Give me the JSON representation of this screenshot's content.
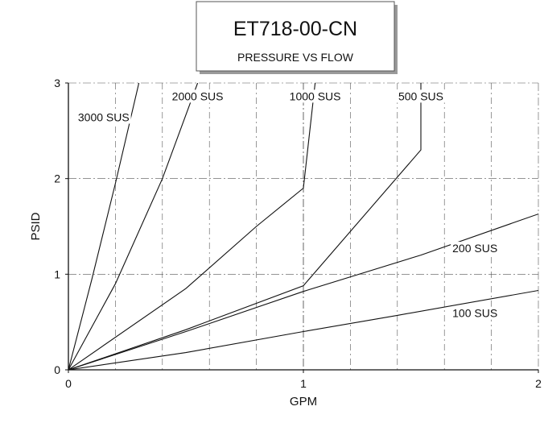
{
  "chart_data": {
    "type": "line",
    "title": "ET718-00-CN",
    "subtitle": "PRESSURE VS FLOW",
    "xlabel": "GPM",
    "ylabel": "PSID",
    "xlim": [
      0,
      2
    ],
    "ylim": [
      0,
      3
    ],
    "x_ticks": [
      0,
      1,
      2
    ],
    "y_ticks": [
      0,
      1,
      2,
      3
    ],
    "grid": true,
    "legend": "none (series labeled inline on curves)",
    "series": [
      {
        "name": "3000 SUS",
        "points": [
          [
            0,
            0
          ],
          [
            0.1,
            0.95
          ],
          [
            0.2,
            1.95
          ],
          [
            0.3,
            3.0
          ]
        ]
      },
      {
        "name": "2000 SUS",
        "points": [
          [
            0,
            0
          ],
          [
            0.2,
            0.9
          ],
          [
            0.4,
            2.0
          ],
          [
            0.55,
            3.0
          ]
        ]
      },
      {
        "name": "1000 SUS",
        "points": [
          [
            0,
            0
          ],
          [
            0.5,
            0.85
          ],
          [
            0.8,
            1.5
          ],
          [
            1.0,
            1.9
          ],
          [
            1.05,
            3.0
          ]
        ]
      },
      {
        "name": "500 SUS",
        "points": [
          [
            0,
            0
          ],
          [
            0.5,
            0.42
          ],
          [
            1.0,
            0.88
          ],
          [
            1.5,
            2.3
          ],
          [
            1.5,
            3.0
          ]
        ]
      },
      {
        "name": "200 SUS",
        "points": [
          [
            0,
            0
          ],
          [
            0.5,
            0.4
          ],
          [
            1.0,
            0.82
          ],
          [
            1.5,
            1.2
          ],
          [
            2.0,
            1.63
          ]
        ]
      },
      {
        "name": "100 SUS",
        "points": [
          [
            0,
            0
          ],
          [
            0.5,
            0.18
          ],
          [
            1.0,
            0.4
          ],
          [
            1.4,
            0.57
          ],
          [
            2.0,
            0.83
          ]
        ]
      }
    ],
    "colors": {
      "line": "#111111",
      "grid": "#555555",
      "background": "#ffffff"
    }
  }
}
